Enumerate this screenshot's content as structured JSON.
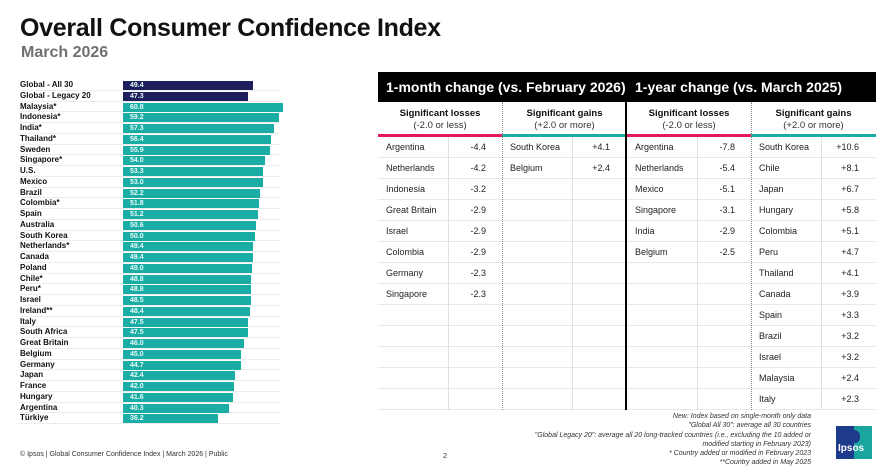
{
  "header": {
    "title": "Overall Consumer Confidence Index",
    "subtitle": "March 2026"
  },
  "colors": {
    "global_bar": "#1d1f5c",
    "country_bar": "#1aada5",
    "loss_accent": "#e5185d",
    "gain_accent": "#1aada5"
  },
  "chart_data": {
    "type": "bar",
    "orientation": "horizontal",
    "title": "Overall Consumer Confidence Index",
    "subtitle": "March 2026",
    "xlabel": "",
    "ylabel": "",
    "xlim": [
      0,
      62
    ],
    "categories": [
      "Global - All 30",
      "Global - Legacy 20",
      "Malaysia*",
      "Indonesia*",
      "India*",
      "Thailand*",
      "Sweden",
      "Singapore*",
      "U.S.",
      "Mexico",
      "Brazil",
      "Colombia*",
      "Spain",
      "Australia",
      "South Korea",
      "Netherlands*",
      "Canada",
      "Poland",
      "Chile*",
      "Peru*",
      "Israel",
      "Ireland**",
      "Italy",
      "South Africa",
      "Great Britain",
      "Belgium",
      "Germany",
      "Japan",
      "France",
      "Hungary",
      "Argentina",
      "Türkiye"
    ],
    "values": [
      49.4,
      47.3,
      60.8,
      59.2,
      57.3,
      56.4,
      55.9,
      54.0,
      53.3,
      53.0,
      52.2,
      51.8,
      51.2,
      50.6,
      50.0,
      49.4,
      49.4,
      49.0,
      48.8,
      48.8,
      48.5,
      48.4,
      47.5,
      47.5,
      46.0,
      45.0,
      44.7,
      42.4,
      42.0,
      41.6,
      40.3,
      36.2
    ],
    "labels": [
      "49.4",
      "47.3",
      "60.8",
      "59.2",
      "57.3",
      "56.4",
      "55.9",
      "54.0",
      "53.3",
      "53.0",
      "52.2",
      "51.8",
      "51.2",
      "50.6",
      "50.0",
      "49.4",
      "49.4",
      "49.0",
      "48.8",
      "48.8",
      "48.5",
      "48.4",
      "47.5",
      "47.5",
      "46.0",
      "45.0",
      "44.7",
      "42.4",
      "42.0",
      "41.6",
      "40.3",
      "36.2"
    ],
    "bar_types": [
      "global",
      "global",
      "country",
      "country",
      "country",
      "country",
      "country",
      "country",
      "country",
      "country",
      "country",
      "country",
      "country",
      "country",
      "country",
      "country",
      "country",
      "country",
      "country",
      "country",
      "country",
      "country",
      "country",
      "country",
      "country",
      "country",
      "country",
      "country",
      "country",
      "country",
      "country",
      "country"
    ],
    "grid": false,
    "legend": "none"
  },
  "tables": {
    "month": {
      "title": "1-month change (vs. February 2026)",
      "losses_header": "Significant losses",
      "losses_sub": "(-2.0 or less)",
      "gains_header": "Significant gains",
      "gains_sub": "(+2.0 or more)",
      "losses": [
        {
          "country": "Argentina",
          "value": "-4.4"
        },
        {
          "country": "Netherlands",
          "value": "-4.2"
        },
        {
          "country": "Indonesia",
          "value": "-3.2"
        },
        {
          "country": "Great Britain",
          "value": "-2.9"
        },
        {
          "country": "Israel",
          "value": "-2.9"
        },
        {
          "country": "Colombia",
          "value": "-2.9"
        },
        {
          "country": "Germany",
          "value": "-2.3"
        },
        {
          "country": "Singapore",
          "value": "-2.3"
        }
      ],
      "gains": [
        {
          "country": "South Korea",
          "value": "+4.1"
        },
        {
          "country": "Belgium",
          "value": "+2.4"
        }
      ]
    },
    "year": {
      "title": "1-year change (vs. March 2025)",
      "losses_header": "Significant losses",
      "losses_sub": "(-2.0 or less)",
      "gains_header": "Significant gains",
      "gains_sub": "(+2.0 or more)",
      "losses": [
        {
          "country": "Argentina",
          "value": "-7.8"
        },
        {
          "country": "Netherlands",
          "value": "-5.4"
        },
        {
          "country": "Mexico",
          "value": "-5.1"
        },
        {
          "country": "Singapore",
          "value": "-3.1"
        },
        {
          "country": "India",
          "value": "-2.9"
        },
        {
          "country": "Belgium",
          "value": "-2.5"
        }
      ],
      "gains": [
        {
          "country": "South Korea",
          "value": "+10.6"
        },
        {
          "country": "Chile",
          "value": "+8.1"
        },
        {
          "country": "Japan",
          "value": "+6.7"
        },
        {
          "country": "Hungary",
          "value": "+5.8"
        },
        {
          "country": "Colombia",
          "value": "+5.1"
        },
        {
          "country": "Peru",
          "value": "+4.7"
        },
        {
          "country": "Thailand",
          "value": "+4.1"
        },
        {
          "country": "Canada",
          "value": "+3.9"
        },
        {
          "country": "Spain",
          "value": "+3.3"
        },
        {
          "country": "Brazil",
          "value": "+3.2"
        },
        {
          "country": "Israel",
          "value": "+3.2"
        },
        {
          "country": "Malaysia",
          "value": "+2.4"
        },
        {
          "country": "Italy",
          "value": "+2.3"
        }
      ]
    }
  },
  "notes": [
    "New: Index based on single-month only data",
    "\"Global All 30\": average all 30 countries",
    "\"Global Legacy 20\": average all 20 long-tracked countries (i.e., excluding the 10 added or",
    "modified starting in February 2023)",
    "* Country added or modified in February 2023",
    "**Country added in May 2025"
  ],
  "footer": {
    "text": "© Ipsos | Global Consumer Confidence Index | March 2026 | Public",
    "page": "2",
    "logo_text": "Ipsos"
  }
}
